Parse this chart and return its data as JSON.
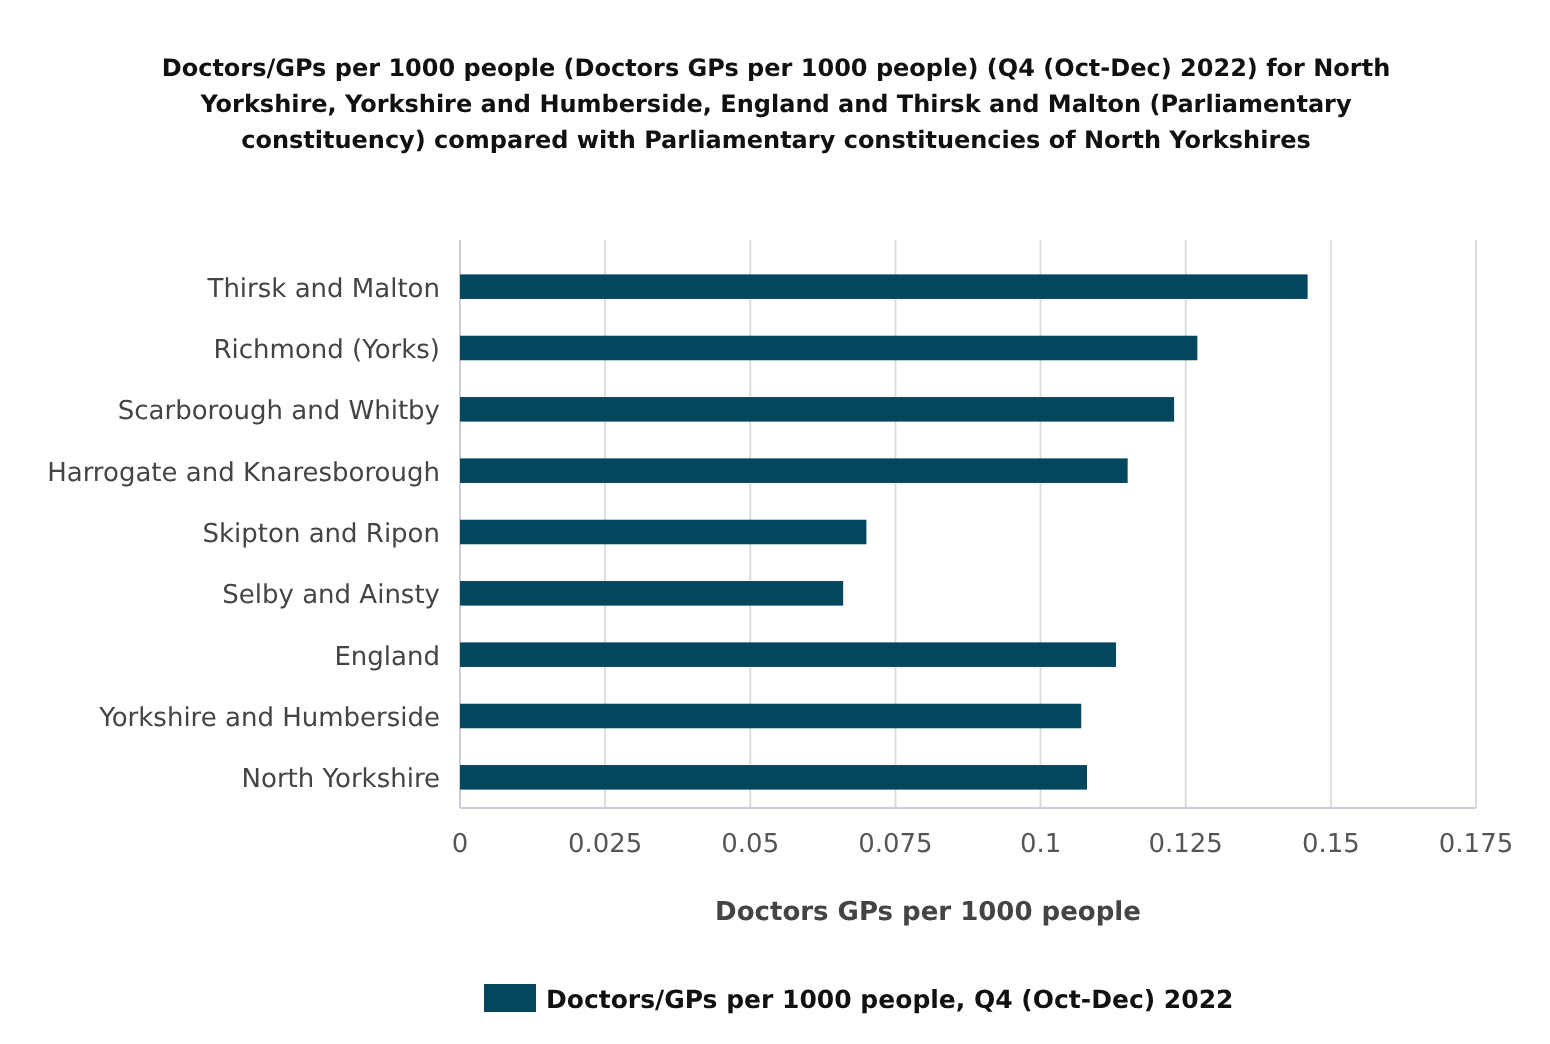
{
  "chart_data": {
    "type": "bar",
    "orientation": "horizontal",
    "title": "Doctors/GPs per 1000 people (Doctors GPs per 1000 people) (Q4 (Oct-Dec) 2022) for North Yorkshire, Yorkshire and Humberside, England and Thirsk and Malton (Parliamentary constituency) compared with Parliamentary constituencies of North Yorkshires",
    "categories": [
      "Thirsk and Malton",
      "Richmond (Yorks)",
      "Scarborough and Whitby",
      "Harrogate and Knaresborough",
      "Skipton and Ripon",
      "Selby and Ainsty",
      "England",
      "Yorkshire and Humberside",
      "North Yorkshire"
    ],
    "series": [
      {
        "name": "Doctors/GPs per 1000 people, Q4 (Oct-Dec) 2022",
        "color": "#02475e",
        "values": [
          0.146,
          0.127,
          0.123,
          0.115,
          0.07,
          0.066,
          0.113,
          0.107,
          0.108
        ]
      }
    ],
    "xlabel": "Doctors GPs per 1000 people",
    "xlim": [
      0,
      0.175
    ],
    "xticks": [
      0,
      0.025,
      0.05,
      0.075,
      0.1,
      0.125,
      0.15,
      0.175
    ],
    "grid": "x",
    "legend": "bottom"
  }
}
